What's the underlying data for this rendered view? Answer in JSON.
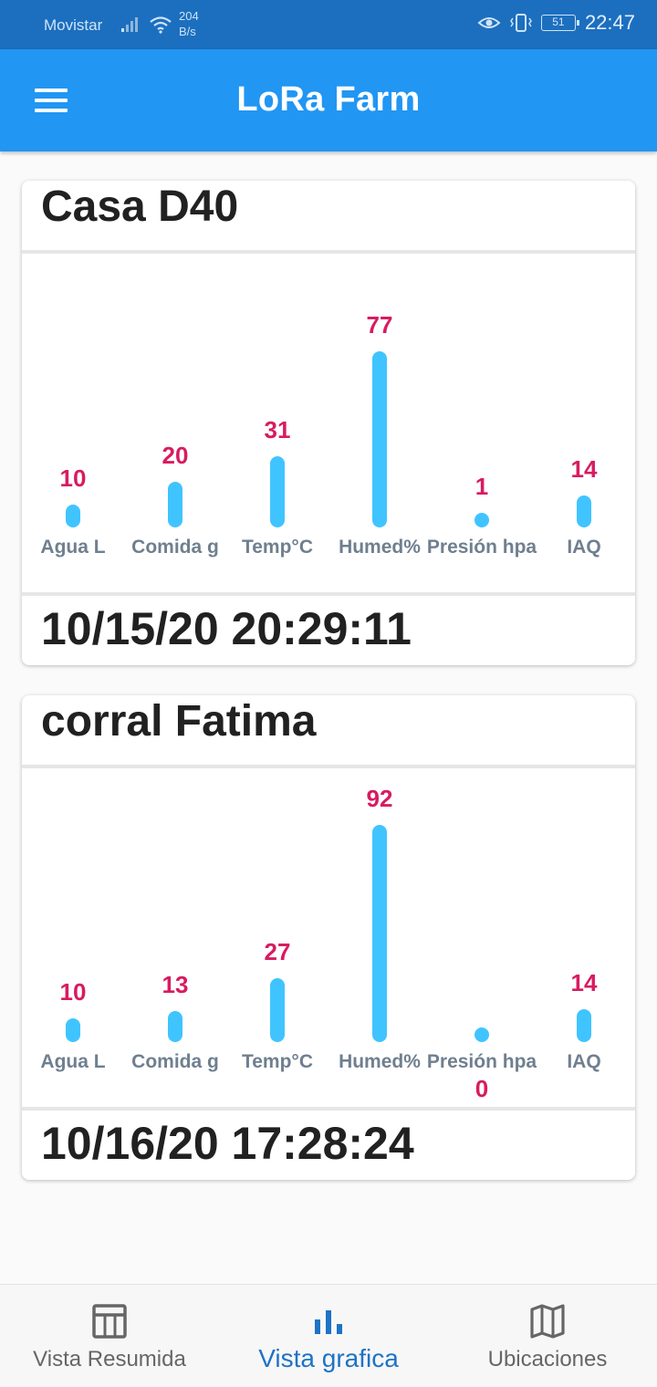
{
  "status_bar": {
    "carrier": "Movistar",
    "speed_value": "204",
    "speed_unit": "B/s",
    "battery": "51",
    "time": "22:47"
  },
  "app_bar": {
    "title": "LoRa Farm",
    "menu_icon": "hamburger-menu-icon"
  },
  "cards": [
    {
      "title": "Casa D40",
      "date": "10/15/20 20:29:11",
      "chart_data": {
        "type": "bar",
        "categories": [
          "Agua L",
          "Comida g",
          "Temp°C",
          "Humed%",
          "Presión hpa",
          "IAQ"
        ],
        "values": [
          10,
          20,
          31,
          77,
          1,
          14
        ]
      }
    },
    {
      "title": "corral Fatima",
      "date": "10/16/20 17:28:24",
      "chart_data": {
        "type": "bar",
        "categories": [
          "Agua L",
          "Comida g",
          "Temp°C",
          "Humed%",
          "Presión hpa",
          "IAQ"
        ],
        "values": [
          10,
          13,
          27,
          92,
          0,
          14
        ]
      }
    }
  ],
  "bottom_nav": {
    "items": [
      {
        "label": "Vista Resumida",
        "icon": "table-icon",
        "active": false
      },
      {
        "label": "Vista grafica",
        "icon": "bar-chart-icon",
        "active": true
      },
      {
        "label": "Ubicaciones",
        "icon": "map-icon",
        "active": false
      }
    ]
  },
  "colors": {
    "app_bar": "#2196f3",
    "status_bar": "#1c6fbf",
    "bar": "#40c4ff",
    "value_label": "#d81b60",
    "nav_active": "#1e73c6"
  }
}
